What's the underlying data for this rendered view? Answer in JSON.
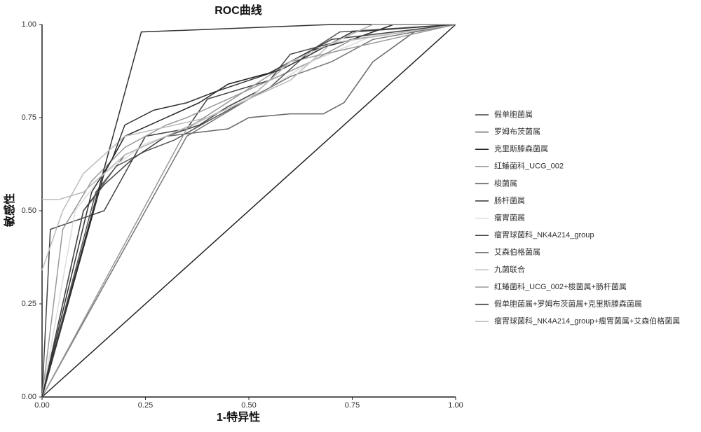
{
  "chart_data": {
    "type": "line",
    "title": "ROC曲线",
    "x_label": "1-特异性",
    "y_label": "敏感性",
    "xlim": [
      0,
      1
    ],
    "ylim": [
      0,
      1
    ],
    "xticks": [
      {
        "value": 0,
        "label": "0.00"
      },
      {
        "value": 0.25,
        "label": "0.25"
      },
      {
        "value": 0.5,
        "label": "0.50"
      },
      {
        "value": 0.75,
        "label": "0.75"
      },
      {
        "value": 1,
        "label": "1.00"
      }
    ],
    "yticks": [
      {
        "value": 0,
        "label": "0.00"
      },
      {
        "value": 0.25,
        "label": "0.25"
      },
      {
        "value": 0.5,
        "label": "0.50"
      },
      {
        "value": 0.75,
        "label": "0.75"
      },
      {
        "value": 1,
        "label": "1.00"
      }
    ],
    "series": [
      {
        "name": "假单胞菌属",
        "color": "#444444",
        "x": [
          0,
          0.02,
          0.15,
          0.2,
          0.25,
          0.35,
          0.4,
          0.55,
          0.6,
          0.7,
          0.8,
          1
        ],
        "values": [
          0,
          0.45,
          0.5,
          0.6,
          0.7,
          0.72,
          0.8,
          0.85,
          0.92,
          0.95,
          1,
          1
        ]
      },
      {
        "name": "罗姆布茨菌属",
        "color": "#666666",
        "x": [
          0,
          0.1,
          0.2,
          0.3,
          0.45,
          0.5,
          0.6,
          0.68,
          0.73,
          0.8,
          0.9,
          1
        ],
        "values": [
          0,
          0.5,
          0.65,
          0.7,
          0.72,
          0.75,
          0.76,
          0.76,
          0.79,
          0.9,
          0.98,
          1
        ]
      },
      {
        "name": "克里斯滕森菌属",
        "color": "#222222",
        "x": [
          0,
          0.15,
          0.2,
          0.3,
          0.38,
          0.45,
          0.55,
          0.6,
          0.65,
          0.75,
          0.85,
          1
        ],
        "values": [
          0,
          0.6,
          0.7,
          0.75,
          0.79,
          0.84,
          0.87,
          0.9,
          0.93,
          0.96,
          1,
          1
        ]
      },
      {
        "name": "红蝽菌科_UCG_002",
        "color": "#999999",
        "x": [
          0,
          0.05,
          0.12,
          0.2,
          0.3,
          0.35,
          0.45,
          0.55,
          0.65,
          0.75,
          1
        ],
        "values": [
          0,
          0.45,
          0.58,
          0.67,
          0.73,
          0.75,
          0.8,
          0.85,
          0.9,
          0.96,
          1
        ]
      },
      {
        "name": "梭菌属",
        "color": "#555555",
        "x": [
          0,
          0.13,
          0.18,
          0.25,
          0.32,
          0.4,
          0.5,
          0.55,
          0.6,
          0.65,
          0.72,
          1
        ],
        "values": [
          0,
          0.55,
          0.62,
          0.66,
          0.69,
          0.74,
          0.8,
          0.83,
          0.88,
          0.93,
          0.98,
          1
        ]
      },
      {
        "name": "肠杆菌属",
        "color": "#333333",
        "x": [
          0,
          0.24,
          0.7,
          1
        ],
        "values": [
          0,
          0.98,
          1,
          1
        ]
      },
      {
        "name": "瘤胃菌属",
        "color": "#dddddd",
        "x": [
          0,
          0.08,
          0.15,
          0.25,
          0.35,
          0.45,
          0.55,
          0.65,
          0.8,
          1
        ],
        "values": [
          0,
          0.5,
          0.6,
          0.68,
          0.72,
          0.78,
          0.83,
          0.9,
          0.97,
          1
        ]
      },
      {
        "name": "瘤胃球菌科_NK4A214_group",
        "color": "#444444",
        "x": [
          0,
          0.1,
          0.15,
          0.22,
          0.3,
          0.38,
          0.45,
          0.52,
          0.6,
          0.7,
          1
        ],
        "values": [
          0,
          0.5,
          0.57,
          0.64,
          0.7,
          0.73,
          0.78,
          0.82,
          0.9,
          0.96,
          1
        ]
      },
      {
        "name": "艾森伯格菌属",
        "color": "#777777",
        "x": [
          0,
          0.35,
          0.5,
          0.6,
          0.7,
          0.8,
          1
        ],
        "values": [
          0,
          0.7,
          0.8,
          0.86,
          0.9,
          0.96,
          1
        ]
      },
      {
        "name": "九菌联合",
        "color": "#bbbbbb",
        "x": [
          0,
          0.05,
          0.1,
          0.2,
          0.4,
          0.6,
          0.7,
          1
        ],
        "values": [
          0.34,
          0.5,
          0.6,
          0.7,
          0.75,
          0.85,
          0.95,
          1
        ]
      },
      {
        "name": "红蝽菌科_UCG_002+梭菌属+肠杆菌属",
        "color": "#999999",
        "x": [
          0,
          0.35,
          0.6,
          1
        ],
        "values": [
          0,
          0.72,
          0.9,
          1
        ]
      },
      {
        "name": "假单胞菌属+罗姆布茨菌属+克里斯滕森菌属",
        "color": "#333333",
        "x": [
          0,
          0.12,
          0.17,
          0.2,
          0.27,
          0.35,
          0.42,
          0.5,
          0.58,
          0.65,
          0.75,
          1
        ],
        "values": [
          0,
          0.55,
          0.64,
          0.73,
          0.77,
          0.79,
          0.82,
          0.85,
          0.88,
          0.92,
          0.98,
          1
        ]
      },
      {
        "name": "瘤胃球菌科_NK4A214_group+瘤胃菌属+艾森伯格菌属",
        "color": "#bbbbbb",
        "x": [
          0,
          0.04,
          0.1,
          0.15,
          0.2,
          0.3,
          0.4,
          0.5,
          0.6,
          0.7,
          0.8,
          1
        ],
        "values": [
          0.53,
          0.53,
          0.55,
          0.6,
          0.65,
          0.7,
          0.75,
          0.8,
          0.9,
          0.95,
          1,
          1
        ]
      }
    ]
  }
}
